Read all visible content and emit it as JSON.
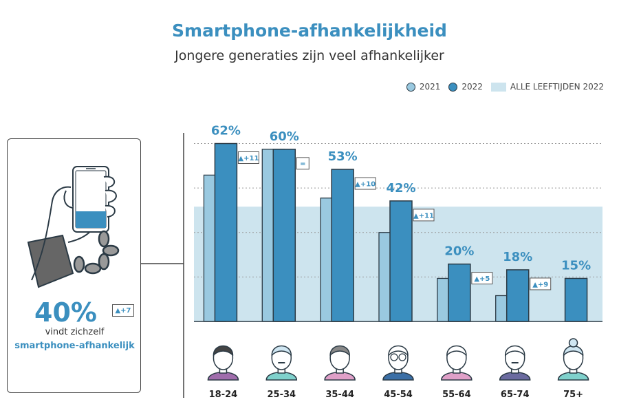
{
  "title": "Smartphone-afhankelijkheid",
  "subtitle": "Jongere generaties zijn veel afhankelijker",
  "legend": {
    "items": [
      {
        "label": "2021",
        "color": "#9ac9e0",
        "shape": "circle"
      },
      {
        "label": "2022",
        "color": "#3b8fbf",
        "shape": "circle"
      },
      {
        "label": "ALLE LEEFTIJDEN 2022",
        "color": "#cde4ee",
        "shape": "square"
      }
    ]
  },
  "highlight": {
    "value": "40%",
    "delta": "+7",
    "line1": "vindt zichzelf",
    "line2": "smartphone-afhankelijk"
  },
  "chart_data": {
    "type": "bar",
    "categories": [
      "18-24",
      "25-34",
      "35-44",
      "45-54",
      "55-64",
      "65-74",
      "75+"
    ],
    "series": [
      {
        "name": "2021",
        "values": [
          51,
          60,
          43,
          31,
          15,
          9,
          null
        ]
      },
      {
        "name": "2022",
        "values": [
          62,
          60,
          53,
          42,
          20,
          18,
          15
        ]
      }
    ],
    "value_labels": [
      "62%",
      "60%",
      "53%",
      "42%",
      "20%",
      "18%",
      "15%"
    ],
    "deltas": [
      "+11",
      "=",
      "+10",
      "+11",
      "+5",
      "+9",
      ""
    ],
    "reference": {
      "name": "ALLE LEEFTIJDEN 2022",
      "value": 40
    },
    "ylim": [
      0,
      65
    ],
    "grid": true,
    "legend_position": "top-right",
    "icons": [
      "young-woman-icon",
      "young-man-icon",
      "woman-icon",
      "glasses-man-icon",
      "man-icon",
      "bald-man-icon",
      "elderly-woman-icon"
    ],
    "colors": {
      "y2021": "#9ac9e0",
      "y2022": "#3b8fbf",
      "band": "#cde4ee",
      "text": "#3b8fbf"
    }
  }
}
